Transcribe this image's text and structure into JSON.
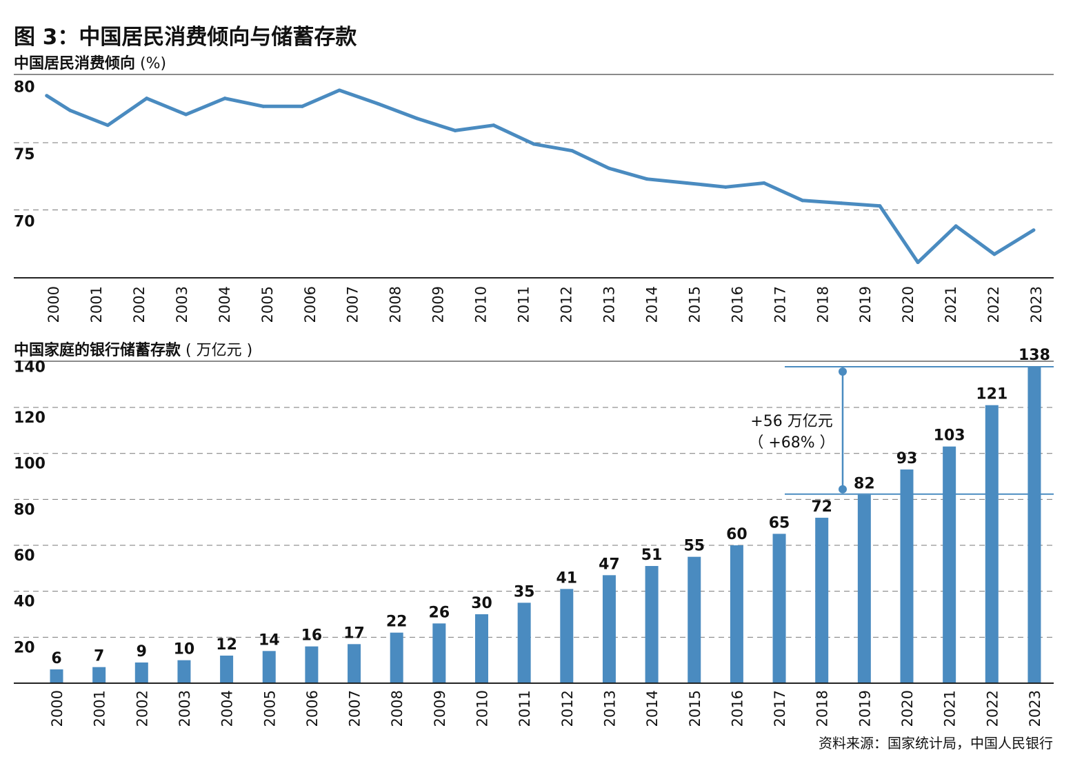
{
  "title": "图 3：中国居民消费倾向与储蓄存款",
  "source": "资料来源：国家统计局，中国人民银行",
  "colors": {
    "series": "#4a8bc0",
    "axis": "#222222",
    "grid": "#777777"
  },
  "chart_data": [
    {
      "type": "line",
      "title": "中国居民消费倾向",
      "unit": "(%)",
      "ylim": [
        65,
        80
      ],
      "yticks": [
        "80",
        "75",
        "70"
      ],
      "ytick_values": [
        80,
        75,
        70
      ],
      "categories": [
        "2000",
        "2001",
        "2002",
        "2003",
        "2004",
        "2005",
        "2006",
        "2007",
        "2008",
        "2009",
        "2010",
        "2011",
        "2012",
        "2013",
        "2014",
        "2015",
        "2016",
        "2017",
        "2018",
        "2019",
        "2020",
        "2021",
        "2022",
        "2023"
      ],
      "x": [
        1999.85,
        2000.4,
        2001.28,
        2002.19,
        2003.11,
        2004.02,
        2004.92,
        2005.83,
        2006.7,
        2007.6,
        2008.52,
        2009.41,
        2010.31,
        2011.25,
        2012.15,
        2013.01,
        2013.9,
        2014.83,
        2015.74,
        2016.64,
        2017.54,
        2018.45,
        2019.35,
        2020.24,
        2021.13,
        2022.03,
        2022.95
      ],
      "y": [
        78.5,
        77.4,
        76.3,
        78.3,
        77.1,
        78.3,
        77.7,
        77.7,
        78.9,
        77.9,
        76.8,
        75.9,
        76.3,
        74.9,
        74.4,
        73.1,
        72.3,
        72.0,
        71.7,
        72.0,
        70.7,
        70.5,
        70.3,
        66.1,
        68.8,
        66.7,
        68.5
      ],
      "grid": "dashed horizontal"
    },
    {
      "type": "bar",
      "title": "中国家庭的银行储蓄存款",
      "unit": "( 万亿元 )",
      "ylim": [
        0,
        142
      ],
      "yticks": [
        "140",
        "120",
        "100",
        "80",
        "60",
        "40",
        "20"
      ],
      "ytick_values": [
        140,
        120,
        100,
        80,
        60,
        40,
        20
      ],
      "categories": [
        "2000",
        "2001",
        "2002",
        "2003",
        "2004",
        "2005",
        "2006",
        "2007",
        "2008",
        "2009",
        "2010",
        "2011",
        "2012",
        "2013",
        "2014",
        "2015",
        "2016",
        "2017",
        "2018",
        "2019",
        "2020",
        "2021",
        "2022",
        "2023"
      ],
      "values": [
        6,
        7,
        9,
        10,
        12,
        14,
        16,
        17,
        22,
        26,
        30,
        35,
        41,
        47,
        51,
        55,
        60,
        65,
        72,
        82,
        93,
        103,
        121,
        138
      ],
      "annotation": {
        "from": 82,
        "to": 138,
        "line1": "+56 万亿元",
        "line2": "（ +68% ）"
      },
      "grid": "dashed horizontal"
    }
  ]
}
